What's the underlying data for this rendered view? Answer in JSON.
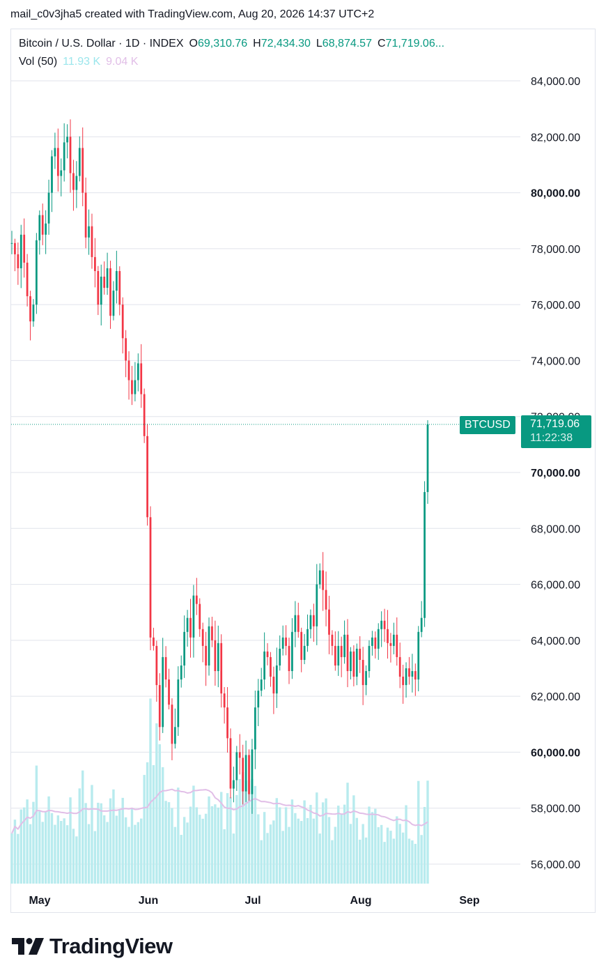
{
  "caption": "mail_c0v3jha5 created with TradingView.com, Aug 20, 2026 14:37 UTC+2",
  "legend": {
    "title": "Bitcoin / U.S. Dollar · 1D · INDEX",
    "o_label": "O",
    "o_value": "69,310.76",
    "h_label": "H",
    "h_value": "72,434.30",
    "l_label": "L",
    "l_value": "68,874.57",
    "c_label": "C",
    "c_value": "71,719.06...",
    "vol_label": "Vol (50)",
    "vol_value": "11.93 K",
    "vol_ma_value": "9.04 K"
  },
  "last_price": {
    "symbol": "BTCUSD",
    "price": "71,719.06",
    "countdown": "11:22:38"
  },
  "brand": "TradingView",
  "colors": {
    "up": "#089981",
    "down": "#f23645",
    "volume": "#b8ebee",
    "volume_ma": "#e1bee7",
    "grid": "#e0e3eb",
    "tag": "#089981"
  },
  "chart_data": {
    "type": "candlestick",
    "y_axis": {
      "ticks": [
        "56,000.00",
        "58,000.00",
        "60,000.00",
        "62,000.00",
        "64,000.00",
        "66,000.00",
        "68,000.00",
        "70,000.00",
        "72,000.00",
        "74,000.00",
        "76,000.00",
        "78,000.00",
        "80,000.00",
        "82,000.00",
        "84,000.00"
      ],
      "bold_ticks": [
        "60,000.00",
        "70,000.00",
        "80,000.00"
      ],
      "range": [
        55250,
        85200
      ]
    },
    "x_axis": {
      "labels": [
        "May",
        "Jun",
        "Jul",
        "Aug",
        "Sep"
      ]
    },
    "grid": true,
    "start_price": 78200,
    "closes": [
      78200,
      77800,
      77300,
      78500,
      77500,
      76300,
      75400,
      76000,
      78300,
      79200,
      78500,
      78900,
      80000,
      81300,
      81600,
      80600,
      80800,
      81800,
      82000,
      80700,
      80100,
      80600,
      81600,
      80000,
      78400,
      78800,
      77700,
      77200,
      76000,
      77000,
      76600,
      77300,
      75600,
      76500,
      77200,
      76000,
      74800,
      74000,
      73300,
      72800,
      73300,
      73900,
      72800,
      71300,
      68400,
      64100,
      63800,
      62400,
      60900,
      63400,
      62600,
      61700,
      60300,
      60900,
      62600,
      63100,
      64300,
      64800,
      64100,
      65600,
      65300,
      64400,
      63800,
      63100,
      64500,
      64000,
      62900,
      63900,
      62100,
      61600,
      60500,
      58700,
      59000,
      60000,
      59800,
      58600,
      59900,
      58500,
      60100,
      61600,
      62200,
      62600,
      63600,
      63400,
      62700,
      62100,
      63100,
      63700,
      64100,
      63800,
      62900,
      64300,
      64900,
      64300,
      63300,
      63800,
      64400,
      64900,
      64500,
      66000,
      66500,
      65800,
      65100,
      64200,
      63800,
      63100,
      63800,
      63400,
      64200,
      62900,
      63600,
      62700,
      63700,
      63300,
      62400,
      62900,
      63800,
      64100,
      63700,
      64400,
      64700,
      64400,
      63900,
      63800,
      64200,
      63400,
      62700,
      62400,
      63000,
      62700,
      62900,
      62600,
      64300,
      64800,
      69300,
      71719
    ],
    "highs_lows_note": "",
    "volume": {
      "ma_value": "9.04 K",
      "last_value": "11.93 K"
    }
  }
}
